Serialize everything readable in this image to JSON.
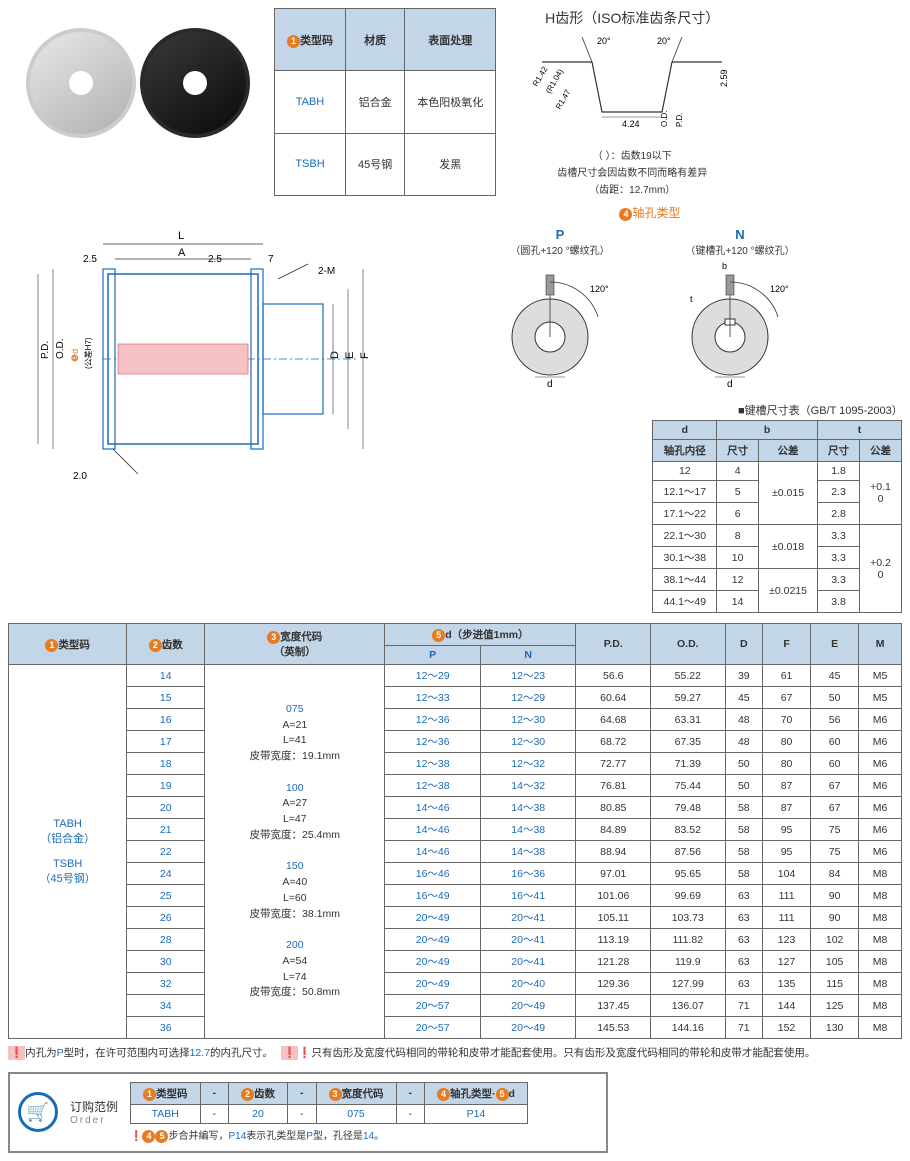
{
  "material_table": {
    "headers": [
      "❶类型码",
      "材质",
      "表面处理"
    ],
    "rows": [
      [
        "TABH",
        "铝合金",
        "本色阳极氧化"
      ],
      [
        "TSBH",
        "45号钢",
        "发黑"
      ]
    ]
  },
  "tooth": {
    "title": "H齿形（ISO标准齿条尺寸）",
    "angles": [
      "20°",
      "20°"
    ],
    "dims": {
      "r1": "R1.42",
      "r1_inner": "(R1.04)",
      "r2": "R1.47",
      "w": "4.24",
      "h": "2.59"
    },
    "axis": [
      "O.D.",
      "P.D."
    ],
    "note1": "（ ）：齿数19以下",
    "note2": "齿槽尺寸会因齿数不同而略有差异",
    "note3": "（齿距：12.7mm）"
  },
  "tech_drawing": {
    "labels": [
      "L",
      "A",
      "2.5",
      "2.5",
      "7",
      "2-M",
      "P.D.",
      "O.D.",
      "d",
      "(公差H7)",
      "D",
      "E",
      "F",
      "2.0"
    ],
    "circ5": "❺"
  },
  "bore": {
    "title": "❹轴孔类型",
    "p": {
      "label": "P",
      "desc": "（圆孔+120 °螺纹孔）",
      "angle": "120°",
      "dim": "d"
    },
    "n": {
      "label": "N",
      "desc": "（键槽孔+120 °螺纹孔）",
      "angle": "120°",
      "dim": "d",
      "t": "t",
      "b": "b"
    }
  },
  "keyway": {
    "title": "■键槽尺寸表（GB/T 1095-2003）",
    "headers": {
      "d": "d",
      "d_sub": "轴孔内径",
      "b": "b",
      "t": "t",
      "size": "尺寸",
      "tol": "公差"
    },
    "rows": [
      {
        "d": "12",
        "b": "4",
        "btol": "±0.015",
        "t": "1.8",
        "ttol": "+0.1\n0",
        "bspan": 3,
        "tspan": 3
      },
      {
        "d": "12.1～17",
        "b": "5",
        "t": "2.3"
      },
      {
        "d": "17.1～22",
        "b": "6",
        "t": "2.8"
      },
      {
        "d": "22.1～30",
        "b": "8",
        "btol": "±0.018",
        "t": "3.3",
        "ttol": "+0.2\n0",
        "bspan": 2,
        "tspan": 4
      },
      {
        "d": "30.1～38",
        "b": "10",
        "t": "3.3"
      },
      {
        "d": "38.1～44",
        "b": "12",
        "btol": "±0.0215",
        "t": "3.3",
        "bspan": 2
      },
      {
        "d": "44.1～49",
        "b": "14",
        "t": "3.8"
      }
    ]
  },
  "main": {
    "headers": [
      "❶类型码",
      "❷齿数",
      "❸宽度代码\n（英制）",
      "❺d（步进值1mm）",
      "P.D.",
      "O.D.",
      "D",
      "F",
      "E",
      "M"
    ],
    "sub": [
      "P",
      "N"
    ],
    "type_col": "TABH\n（铝合金）\n\nTSBH\n（45号钢）",
    "width_groups": [
      {
        "code": "075",
        "a": "A=21",
        "l": "L=41",
        "belt": "皮带宽度：19.1mm"
      },
      {
        "code": "100",
        "a": "A=27",
        "l": "L=47",
        "belt": "皮带宽度：25.4mm"
      },
      {
        "code": "150",
        "a": "A=40",
        "l": "L=60",
        "belt": "皮带宽度：38.1mm"
      },
      {
        "code": "200",
        "a": "A=54",
        "l": "L=74",
        "belt": "皮带宽度：50.8mm"
      }
    ],
    "rows": [
      [
        "14",
        "12～29",
        "12～23",
        "56.6",
        "55.22",
        "39",
        "61",
        "45",
        "M5"
      ],
      [
        "15",
        "12～33",
        "12～29",
        "60.64",
        "59.27",
        "45",
        "67",
        "50",
        "M5"
      ],
      [
        "16",
        "12～36",
        "12～30",
        "64.68",
        "63.31",
        "48",
        "70",
        "56",
        "M6"
      ],
      [
        "17",
        "12～36",
        "12～30",
        "68.72",
        "67.35",
        "48",
        "80",
        "60",
        "M6"
      ],
      [
        "18",
        "12～38",
        "12～32",
        "72.77",
        "71.39",
        "50",
        "80",
        "60",
        "M6"
      ],
      [
        "19",
        "12～38",
        "14～32",
        "76.81",
        "75.44",
        "50",
        "87",
        "67",
        "M6"
      ],
      [
        "20",
        "14～46",
        "14～38",
        "80.85",
        "79.48",
        "58",
        "87",
        "67",
        "M6"
      ],
      [
        "21",
        "14～46",
        "14～38",
        "84.89",
        "83.52",
        "58",
        "95",
        "75",
        "M6"
      ],
      [
        "22",
        "14～46",
        "14～38",
        "88.94",
        "87.56",
        "58",
        "95",
        "75",
        "M6"
      ],
      [
        "24",
        "16～46",
        "16～36",
        "97.01",
        "95.65",
        "58",
        "104",
        "84",
        "M8"
      ],
      [
        "25",
        "16～49",
        "16～41",
        "101.06",
        "99.69",
        "63",
        "111",
        "90",
        "M8"
      ],
      [
        "26",
        "20～49",
        "20～41",
        "105.11",
        "103.73",
        "63",
        "111",
        "90",
        "M8"
      ],
      [
        "28",
        "20～49",
        "20～41",
        "113.19",
        "111.82",
        "63",
        "123",
        "102",
        "M8"
      ],
      [
        "30",
        "20～49",
        "20～41",
        "121.28",
        "119.9",
        "63",
        "127",
        "105",
        "M8"
      ],
      [
        "32",
        "20～49",
        "20～40",
        "129.36",
        "127.99",
        "63",
        "135",
        "115",
        "M8"
      ],
      [
        "34",
        "20～57",
        "20～49",
        "137.45",
        "136.07",
        "71",
        "144",
        "125",
        "M8"
      ],
      [
        "36",
        "20～57",
        "20～49",
        "145.53",
        "144.16",
        "71",
        "152",
        "130",
        "M8"
      ]
    ]
  },
  "notes": {
    "n1_pre": "❗内孔为",
    "n1_p": "P",
    "n1_mid": "型时，在许可范围内可选择",
    "n1_127": "12.7",
    "n1_post": "的内孔尺寸。",
    "n2_pre": "❗只有齿形及宽度代码相同的带轮和皮带才能配套使用。"
  },
  "order": {
    "label": "订购范例",
    "sub": "Order",
    "headers": [
      "❶类型码",
      "-",
      "❷齿数",
      "-",
      "❸宽度代码",
      "-",
      "❹轴孔类型·❺d"
    ],
    "values": [
      "TABH",
      "-",
      "20",
      "-",
      "075",
      "-",
      "P14"
    ],
    "note": "❗❹❺步合并编写，P14表示孔类型是P型，孔径是14。"
  }
}
